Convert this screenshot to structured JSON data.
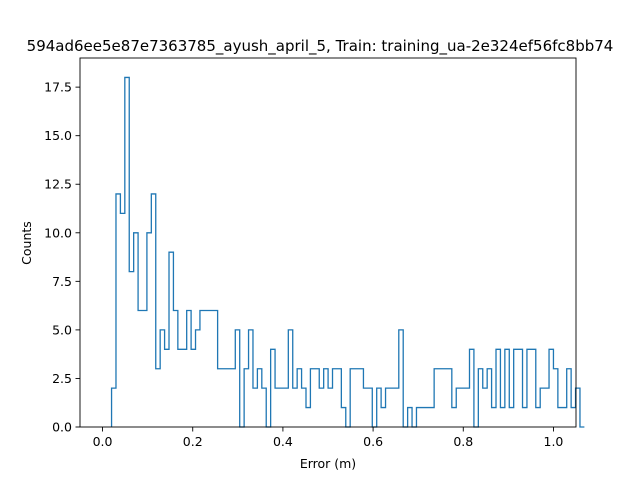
{
  "chart_data": {
    "type": "histogram",
    "title": "594ad6ee5e87e7363785_ayush_april_5, Train: training_ua-2e324ef56fc8bb74",
    "xlabel": "Error (m)",
    "ylabel": "Counts",
    "xlim": [
      -0.05,
      1.05
    ],
    "ylim": [
      0,
      19
    ],
    "x_ticks": [
      0.0,
      0.2,
      0.4,
      0.6,
      0.8,
      1.0
    ],
    "x_tick_labels": [
      "0.0",
      "0.2",
      "0.4",
      "0.6",
      "0.8",
      "1.0"
    ],
    "y_ticks": [
      0.0,
      2.5,
      5.0,
      7.5,
      10.0,
      12.5,
      15.0,
      17.5
    ],
    "y_tick_labels": [
      "0.0",
      "2.5",
      "5.0",
      "7.5",
      "10.0",
      "12.5",
      "15.0",
      "17.5"
    ],
    "bin_start": 0.02,
    "bin_width": 0.0098,
    "counts": [
      2,
      12,
      11,
      18,
      8,
      10,
      6,
      6,
      10,
      12,
      3,
      5,
      4,
      9,
      6,
      4,
      4,
      6,
      4,
      5,
      6,
      6,
      6,
      6,
      3,
      3,
      3,
      3,
      5,
      0,
      3,
      5,
      2,
      3,
      2,
      0,
      4,
      2,
      2,
      2,
      5,
      2,
      3,
      2,
      1,
      3,
      3,
      2,
      3,
      2,
      3,
      3,
      1,
      0,
      3,
      3,
      3,
      2,
      2,
      0,
      2,
      1,
      2,
      2,
      2,
      5,
      0,
      1,
      0,
      1,
      1,
      1,
      1,
      3,
      3,
      3,
      3,
      1,
      2,
      2,
      2,
      4,
      0,
      3,
      2,
      3,
      1,
      4,
      1,
      4,
      1,
      4,
      4,
      1,
      4,
      4,
      1,
      2,
      2,
      4,
      3,
      1,
      1,
      3,
      1,
      2,
      0
    ],
    "color": "#1f77b4"
  }
}
